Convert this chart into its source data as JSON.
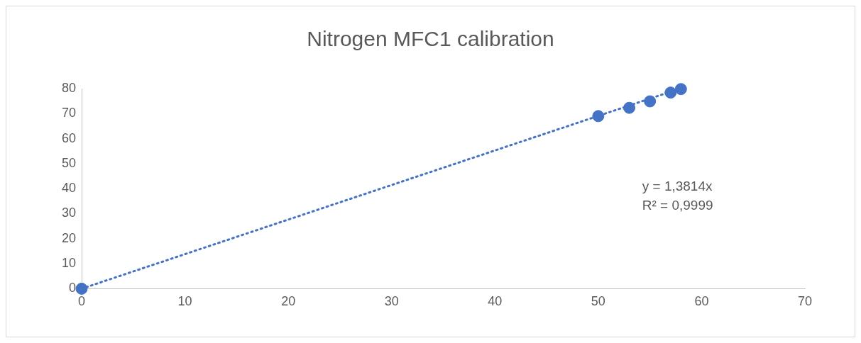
{
  "chart_data": {
    "type": "scatter",
    "title": "Nitrogen MFC1 calibration",
    "series": [
      {
        "type": "scatter",
        "color": "#4472c4",
        "x": [
          0,
          50,
          53,
          55,
          57,
          58
        ],
        "values": [
          0,
          69,
          72.3,
          74.9,
          78.4,
          79.8
        ],
        "marker": "circle"
      },
      {
        "type": "line",
        "color": "#4472c4",
        "x": [
          0,
          57.9
        ],
        "values": [
          0,
          80
        ],
        "line_style": "dotted",
        "marker": "none"
      }
    ],
    "xlim": [
      0,
      70
    ],
    "xticks": [
      0,
      10,
      20,
      30,
      40,
      50,
      60,
      70
    ],
    "ylim": [
      0,
      80
    ],
    "yticks": [
      0,
      10,
      20,
      30,
      40,
      50,
      60,
      70,
      80
    ],
    "grid": false,
    "legend": false,
    "annotations": [
      "y = 1,3814x",
      "R² = 0,9999"
    ]
  }
}
